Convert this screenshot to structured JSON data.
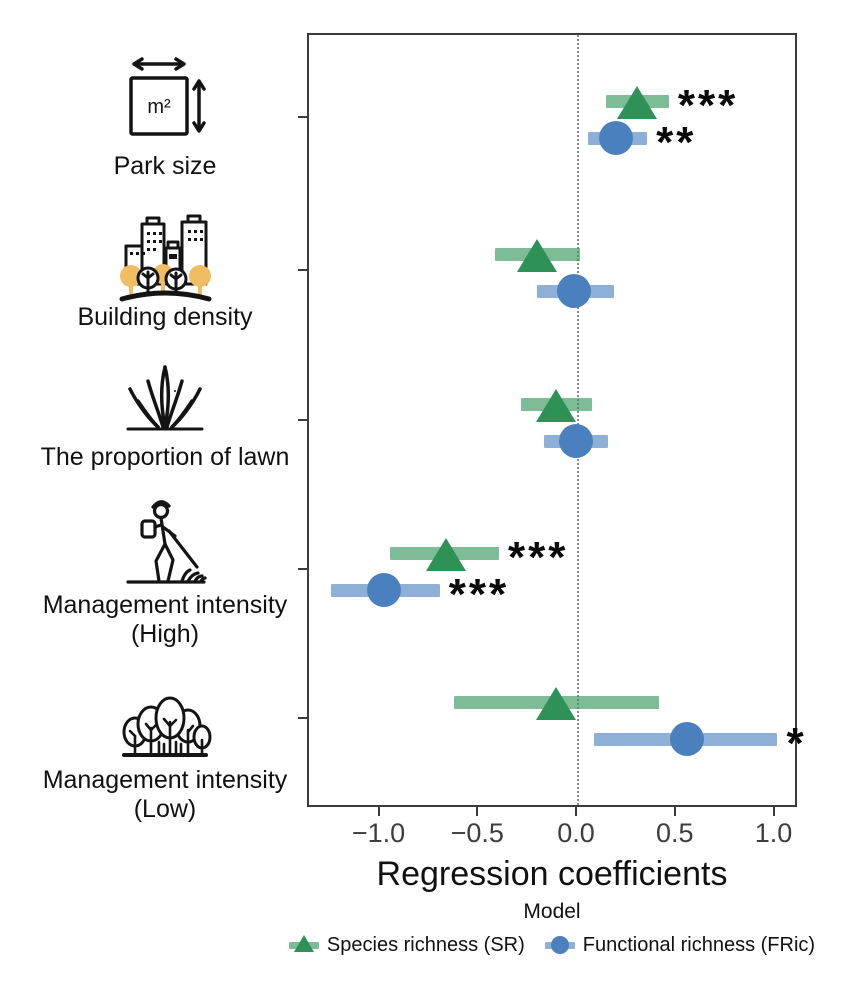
{
  "figure_background": "#ffffff",
  "predictors": [
    {
      "label_line1": "Park size",
      "label_line2": "",
      "icon": "park-area-icon",
      "unit_label": "m²"
    },
    {
      "label_line1": "Building density",
      "label_line2": "",
      "icon": "building-density-icon"
    },
    {
      "label_line1": "The proportion of lawn",
      "label_line2": "",
      "icon": "lawn-grass-icon"
    },
    {
      "label_line1": "Management intensity",
      "label_line2": "(High)",
      "icon": "lawn-mowing-icon"
    },
    {
      "label_line1": "Management intensity",
      "label_line2": "(Low)",
      "icon": "forest-trees-icon"
    }
  ],
  "chart_data": {
    "type": "scatter",
    "subtype": "forest-plot (regression coefficients with horizontal confidence intervals)",
    "title": "",
    "xlabel": "Regression coefficients",
    "ylabel": "",
    "xlim": [
      -1.36,
      1.12
    ],
    "x_ticks": [
      -1.0,
      -0.5,
      0.0,
      0.5,
      1.0
    ],
    "x_tick_labels": [
      "−1.0",
      "−0.5",
      "0.0",
      "0.5",
      "1.0"
    ],
    "zero_reference_line": 0.0,
    "grid": false,
    "categories": [
      "Park size",
      "Building density",
      "The proportion of lawn",
      "Management intensity (High)",
      "Management intensity (Low)"
    ],
    "legend": {
      "title": "Model",
      "position": "bottom",
      "entries": [
        {
          "label": "Species richness (SR)",
          "marker": "triangle",
          "color": "#2e9257"
        },
        {
          "label": "Functional richness (FRic)",
          "marker": "circle",
          "color": "#4a80bd"
        }
      ]
    },
    "series": [
      {
        "name": "Species richness (SR)",
        "marker": "triangle",
        "color": "#2e9257",
        "ci_color": "rgba(46,146,87,0.62)",
        "points": [
          {
            "category": "Park size",
            "estimate": 0.3,
            "ci_low": 0.14,
            "ci_high": 0.46,
            "significance": "***"
          },
          {
            "category": "Building density",
            "estimate": -0.21,
            "ci_low": -0.42,
            "ci_high": 0.01,
            "significance": ""
          },
          {
            "category": "The proportion of lawn",
            "estimate": -0.11,
            "ci_low": -0.29,
            "ci_high": 0.07,
            "significance": ""
          },
          {
            "category": "Management intensity (High)",
            "estimate": -0.67,
            "ci_low": -0.95,
            "ci_high": -0.4,
            "significance": "***"
          },
          {
            "category": "Management intensity (Low)",
            "estimate": -0.11,
            "ci_low": -0.63,
            "ci_high": 0.41,
            "significance": ""
          }
        ]
      },
      {
        "name": "Functional richness (FRic)",
        "marker": "circle",
        "color": "#4a80bd",
        "ci_color": "rgba(74,128,189,0.62)",
        "points": [
          {
            "category": "Park size",
            "estimate": 0.19,
            "ci_low": 0.05,
            "ci_high": 0.35,
            "significance": "**"
          },
          {
            "category": "Building density",
            "estimate": -0.02,
            "ci_low": -0.21,
            "ci_high": 0.18,
            "significance": ""
          },
          {
            "category": "The proportion of lawn",
            "estimate": -0.01,
            "ci_low": -0.17,
            "ci_high": 0.15,
            "significance": ""
          },
          {
            "category": "Management intensity (High)",
            "estimate": -0.98,
            "ci_low": -1.25,
            "ci_high": -0.7,
            "significance": "***"
          },
          {
            "category": "Management intensity (Low)",
            "estimate": 0.55,
            "ci_low": 0.08,
            "ci_high": 1.01,
            "significance": "*"
          }
        ]
      }
    ]
  }
}
